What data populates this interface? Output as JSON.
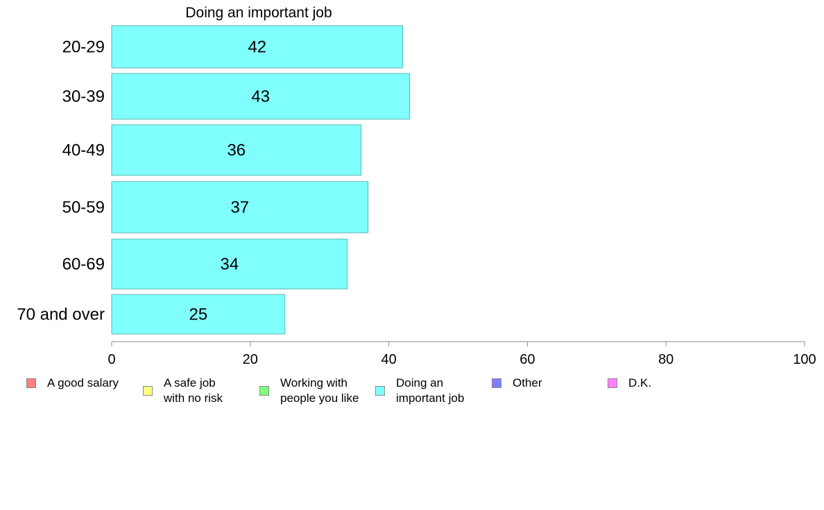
{
  "chart_data": {
    "type": "bar",
    "orientation": "horizontal",
    "title": "Doing an important job",
    "categories": [
      "20-29",
      "30-39",
      "40-49",
      "50-59",
      "60-69",
      "70 and over"
    ],
    "series": [
      {
        "name": "Doing an important job",
        "values": [
          42,
          43,
          36,
          37,
          34,
          25
        ],
        "color": "#80ffff"
      }
    ],
    "xlim": [
      0,
      100
    ],
    "xticks": [
      0,
      20,
      40,
      60,
      80,
      100
    ],
    "grid": false,
    "legend_position": "bottom",
    "bar_stroke": "#5bb6b6"
  },
  "legend": {
    "items": [
      {
        "label": "A good salary",
        "color": "#ff8080"
      },
      {
        "label": "A safe job\nwith no risk",
        "color": "#ffff80"
      },
      {
        "label": "Working with\npeople you like",
        "color": "#80ff80"
      },
      {
        "label": "Doing an\nimportant job",
        "color": "#80ffff"
      },
      {
        "label": "Other",
        "color": "#8080ff"
      },
      {
        "label": "D.K.",
        "color": "#ff80ff"
      }
    ]
  }
}
